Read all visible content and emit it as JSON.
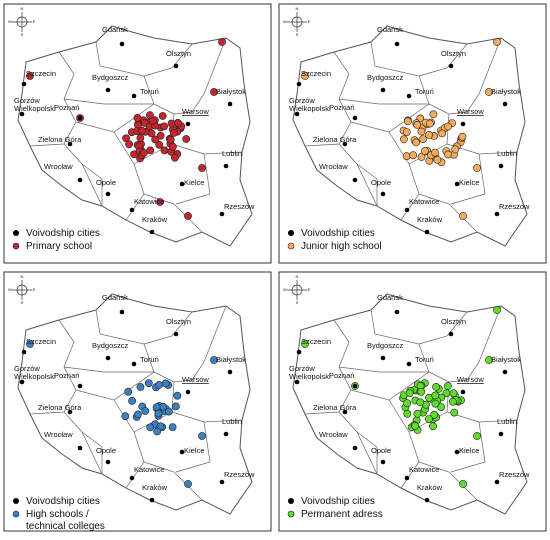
{
  "cities": [
    "Gdańsk",
    "Olsztyn",
    "Szczecin",
    "Białystok",
    "Bydgoszcz",
    "Toruń",
    "Gorzów",
    "Wielkopolski",
    "Poznań",
    "Warsow",
    "Zielona Góra",
    "Wrocław",
    "Lublin",
    "Opole",
    "Katowice",
    "Kielce",
    "Kraków",
    "Rzeszów"
  ],
  "compass": [
    "N",
    "S",
    "W",
    "E"
  ],
  "panels": [
    {
      "legend": [
        {
          "lines": [
            "Voivodship cities"
          ],
          "color": "#000000"
        },
        {
          "lines": [
            "Primary school"
          ],
          "color": "#c4262e"
        }
      ]
    },
    {
      "legend": [
        {
          "lines": [
            "Voivodship cities"
          ],
          "color": "#000000"
        },
        {
          "lines": [
            "Junior high school"
          ],
          "color": "#f5aa5c"
        }
      ]
    },
    {
      "legend": [
        {
          "lines": [
            "Voivodship cities"
          ],
          "color": "#000000"
        },
        {
          "lines": [
            "High schools /",
            "technical colleges"
          ],
          "color": "#3b80c2"
        }
      ]
    },
    {
      "legend": [
        {
          "lines": [
            "Voivodship cities"
          ],
          "color": "#000000"
        },
        {
          "lines": [
            "Permanent adress"
          ],
          "color": "#5fdc2c"
        }
      ]
    }
  ]
}
